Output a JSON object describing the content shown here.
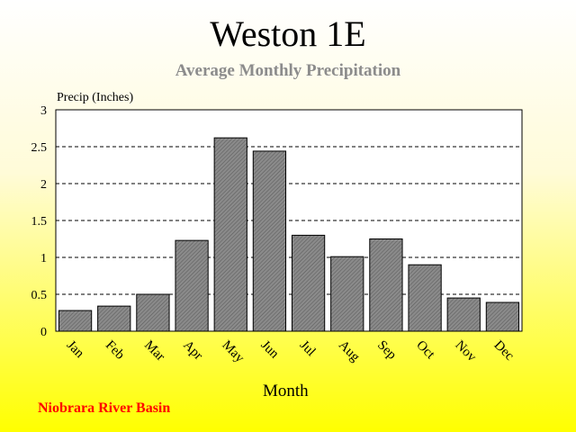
{
  "chart_data": {
    "type": "bar",
    "title": "Weston 1E",
    "subtitle": "Average Monthly Precipitation",
    "ylabel": "Precip (Inches)",
    "xlabel": "Month",
    "categories": [
      "Jan",
      "Feb",
      "Mar",
      "Apr",
      "May",
      "Jun",
      "Jul",
      "Aug",
      "Sep",
      "Oct",
      "Nov",
      "Dec"
    ],
    "values": [
      0.28,
      0.34,
      0.5,
      1.23,
      2.62,
      2.44,
      1.3,
      1.01,
      1.25,
      0.9,
      0.45,
      0.39
    ],
    "ylim": [
      0,
      3
    ],
    "yticks": [
      "0",
      "0.5",
      "1",
      "1.5",
      "2",
      "2.5",
      "3"
    ],
    "grid": "horizontal dashed",
    "bar_color": "#808080"
  },
  "footer": {
    "basin": "Niobrara River Basin"
  },
  "colors": {
    "background_top": "#ffffff",
    "background_bottom": "#ffff00",
    "basin_text": "#ff0000",
    "subtitle_text": "#8c8c8c"
  }
}
